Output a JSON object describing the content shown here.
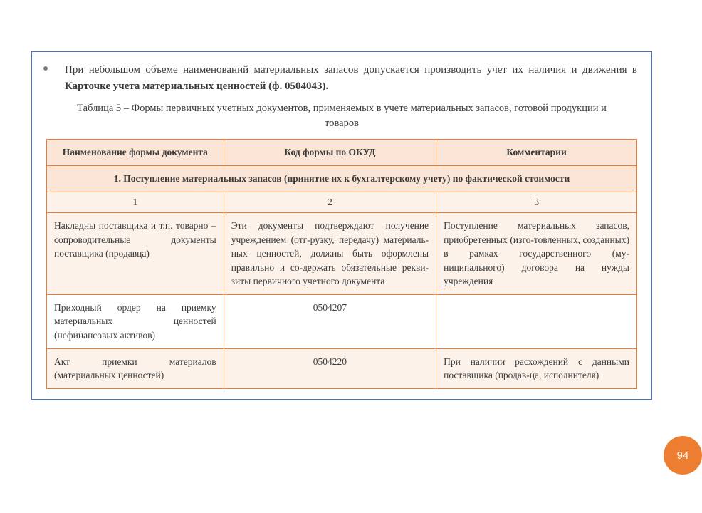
{
  "intro": {
    "prefix": "При небольшом объеме наименований материальных запасов допускается производить учет их наличия и движения в ",
    "bold": "Карточке учета материальных ценностей (ф. 0504043)."
  },
  "caption": "Таблица 5 – Формы первичных учетных документов, применяемых в учете материальных запасов, готовой продукции и товаров",
  "table": {
    "headers": [
      "Наименование формы документа",
      "Код формы по ОКУД",
      "Комментарии"
    ],
    "section": "1. Поступление материальных запасов (принятие их к бухгалтерскому учету) по фактической стоимости",
    "nums": [
      "1",
      "2",
      "3"
    ],
    "rows": [
      {
        "c1": "Накладны поставщика и т.п. товарно – сопроводительные документы поставщика (продавца)",
        "c2": "Эти документы подтверждают получение учреждением (отг-рузку, передачу) материаль-ных ценностей, должны быть оформлены правильно и со-держать обязательные рекви-зиты первичного учетного документа",
        "c3": "Поступление материальных запасов, приобретенных (изго-товленных, созданных) в рамках государственного (му-ниципального) договора на нужды учреждения"
      },
      {
        "c1": "Приходный ордер на приемку материальных ценностей (нефинансовых активов)",
        "c2": "0504207",
        "c3": ""
      },
      {
        "c1": "Акт приемки материалов (материальных ценностей)",
        "c2": "0504220",
        "c3": "При наличии расхождений с данными поставщика (продав-ца, исполнителя)"
      }
    ]
  },
  "page_number": "94",
  "colors": {
    "border_table": "#ed7d31",
    "header_bg": "#fbe5d6",
    "row_bg": "#fdf2ea",
    "row_alt_bg": "#ffffff",
    "slide_border": "#4472c4",
    "badge_bg": "#ed7d31",
    "text": "#3b3b3b"
  }
}
